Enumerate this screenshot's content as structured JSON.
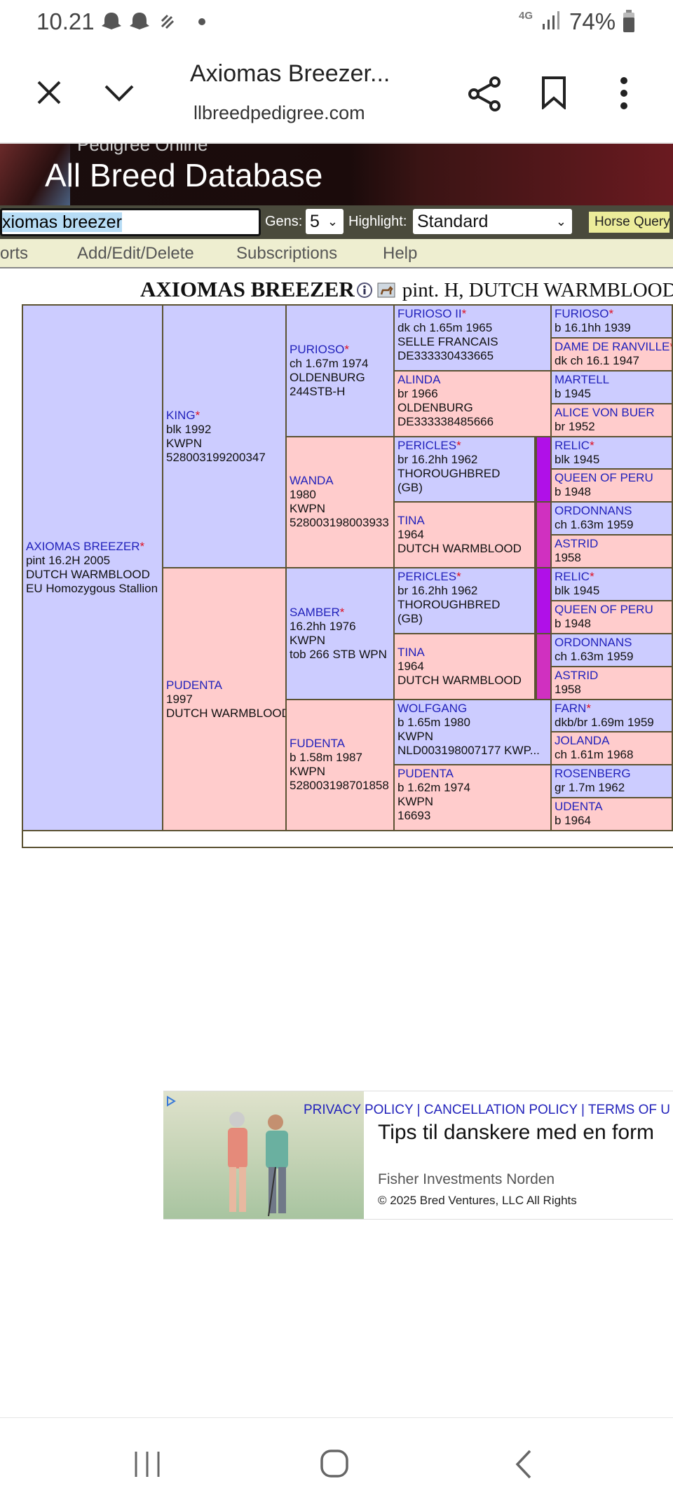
{
  "status": {
    "time": "10.21",
    "network": "4G",
    "battery": "74%",
    "icons": [
      "snapchat-icon",
      "snapchat-icon",
      "signal-wave-icon",
      "dot-icon",
      "signal-icon",
      "battery-icon"
    ]
  },
  "browser": {
    "title": "Axiomas Breezer...",
    "url": "llbreedpedigree.com",
    "icons": [
      "close-icon",
      "chevron-down-icon",
      "share-icon",
      "bookmark-icon",
      "more-icon"
    ]
  },
  "banner": {
    "subtitle": "Pedigree Online",
    "title": "All Breed Database"
  },
  "search": {
    "value": "xiomas breezer",
    "gens_label": "Gens:",
    "gens_value": "5",
    "highlight_label": "Highlight:",
    "highlight_value": "Standard",
    "horse_query": "Horse Query"
  },
  "nav": [
    "orts",
    "Add/Edit/Delete",
    "Subscriptions",
    "Help"
  ],
  "horse": {
    "name": "AXIOMAS BREEZER",
    "desc": "pint. H, DUTCH WARMBLOOD"
  },
  "colors": {
    "male": "#ccccff",
    "female": "#ffcccc",
    "border": "#5b5232",
    "link": "#2222bb",
    "inbreed1": "#b010e8",
    "inbreed2": "#d030c0"
  },
  "pedigree": [
    [
      {
        "name": "AXIOMAS BREEZER",
        "star": true,
        "sex": "b",
        "lines": [
          "pint 16.2H 2005",
          "DUTCH WARMBLOOD",
          "EU Homozygous Stallion"
        ]
      }
    ],
    [
      {
        "name": "KING",
        "star": true,
        "sex": "b",
        "lines": [
          "blk 1992",
          "KWPN",
          "528003199200347"
        ]
      },
      {
        "name": "PUDENTA",
        "star": false,
        "sex": "p",
        "lines": [
          "1997",
          "DUTCH WARMBLOOD"
        ]
      }
    ],
    [
      {
        "name": "PURIOSO",
        "star": true,
        "sex": "b",
        "lines": [
          "ch 1.67m 1974",
          "OLDENBURG",
          "244STB-H"
        ]
      },
      {
        "name": "WANDA",
        "star": false,
        "sex": "p",
        "lines": [
          "1980",
          "KWPN",
          "528003198003933"
        ]
      },
      {
        "name": "SAMBER",
        "star": true,
        "sex": "b",
        "lines": [
          "16.2hh 1976",
          "KWPN",
          "tob 266 STB WPN"
        ]
      },
      {
        "name": "FUDENTA",
        "star": false,
        "sex": "p",
        "lines": [
          "b 1.58m 1987",
          "KWPN",
          "528003198701858"
        ]
      }
    ],
    [
      {
        "name": "FURIOSO II",
        "star": true,
        "sex": "b",
        "lines": [
          "dk ch 1.65m 1965",
          "SELLE FRANCAIS",
          "DE333330433665"
        ]
      },
      {
        "name": "ALINDA",
        "star": false,
        "sex": "p",
        "lines": [
          "br 1966",
          "OLDENBURG",
          "DE333338485666"
        ]
      },
      {
        "name": "PERICLES",
        "star": true,
        "sex": "b",
        "inbred": "inbreed1",
        "lines": [
          "br 16.2hh 1962",
          "THOROUGHBRED",
          "(GB)"
        ]
      },
      {
        "name": "TINA",
        "star": false,
        "sex": "p",
        "inbred": "inbreed2",
        "lines": [
          "1964",
          "DUTCH WARMBLOOD"
        ]
      },
      {
        "name": "PERICLES",
        "star": true,
        "sex": "b",
        "inbred": "inbreed1",
        "lines": [
          "br 16.2hh 1962",
          "THOROUGHBRED",
          "(GB)"
        ]
      },
      {
        "name": "TINA",
        "star": false,
        "sex": "p",
        "inbred": "inbreed2",
        "lines": [
          "1964",
          "DUTCH WARMBLOOD"
        ]
      },
      {
        "name": "WOLFGANG",
        "star": false,
        "sex": "b",
        "lines": [
          "b 1.65m 1980",
          "KWPN",
          "NLD003198007177 KWP..."
        ]
      },
      {
        "name": "PUDENTA",
        "star": false,
        "sex": "p",
        "lines": [
          "b 1.62m 1974",
          "KWPN",
          "16693"
        ]
      }
    ],
    [
      {
        "name": "FURIOSO",
        "star": true,
        "sex": "b",
        "lines": [
          "b 16.1hh 1939"
        ]
      },
      {
        "name": "DAME DE RANVILLE",
        "star": true,
        "sex": "p",
        "lines": [
          "dk ch 16.1 1947"
        ]
      },
      {
        "name": "MARTELL",
        "star": false,
        "sex": "b",
        "lines": [
          "b 1945"
        ]
      },
      {
        "name": "ALICE VON BUER",
        "star": false,
        "sex": "p",
        "lines": [
          "br 1952"
        ]
      },
      {
        "name": "RELIC",
        "star": true,
        "sex": "b",
        "lines": [
          "blk 1945"
        ]
      },
      {
        "name": "QUEEN OF PERU",
        "star": false,
        "sex": "p",
        "lines": [
          "b 1948"
        ]
      },
      {
        "name": "ORDONNANS",
        "star": false,
        "sex": "b",
        "lines": [
          "ch 1.63m 1959"
        ]
      },
      {
        "name": "ASTRID",
        "star": false,
        "sex": "p",
        "lines": [
          "1958"
        ]
      },
      {
        "name": "RELIC",
        "star": true,
        "sex": "b",
        "lines": [
          "blk 1945"
        ]
      },
      {
        "name": "QUEEN OF PERU",
        "star": false,
        "sex": "p",
        "lines": [
          "b 1948"
        ]
      },
      {
        "name": "ORDONNANS",
        "star": false,
        "sex": "b",
        "lines": [
          "ch 1.63m 1959"
        ]
      },
      {
        "name": "ASTRID",
        "star": false,
        "sex": "p",
        "lines": [
          "1958"
        ]
      },
      {
        "name": "FARN",
        "star": true,
        "sex": "b",
        "lines": [
          "dkb/br 1.69m 1959"
        ]
      },
      {
        "name": "JOLANDA",
        "star": false,
        "sex": "p",
        "lines": [
          "ch 1.61m 1968"
        ]
      },
      {
        "name": "ROSENBERG",
        "star": false,
        "sex": "b",
        "lines": [
          "gr 1.7m 1962"
        ]
      },
      {
        "name": "UDENTA",
        "star": false,
        "sex": "p",
        "lines": [
          "b 1964"
        ]
      }
    ]
  ],
  "ad": {
    "policy": "PRIVACY POLICY | CANCELLATION POLICY | TERMS OF U",
    "copyright": "© 2025 Bred Ventures, LLC All Rights",
    "headline": "Tips til danskere med en form",
    "source": "Fisher Investments Norden"
  },
  "system_nav": [
    "recent-apps-icon",
    "home-icon",
    "back-icon"
  ]
}
